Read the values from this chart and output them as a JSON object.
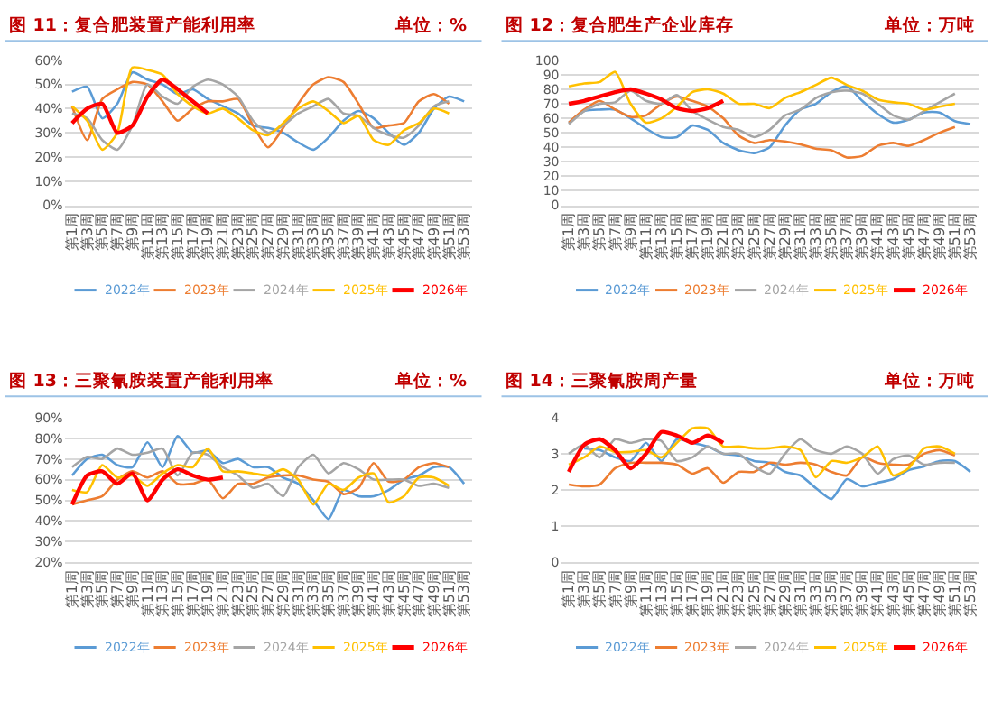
{
  "chart_data": [
    {
      "type": "line",
      "title": "图 11：复合肥装置产能利用率",
      "subtitle": "单位：%",
      "grid": "y",
      "legend": "bottom",
      "categories": [
        "第1周",
        "第3周",
        "第5周",
        "第7周",
        "第9周",
        "第11周",
        "第13周",
        "第15周",
        "第17周",
        "第19周",
        "第21周",
        "第23周",
        "第25周",
        "第27周",
        "第29周",
        "第31周",
        "第33周",
        "第35周",
        "第37周",
        "第39周",
        "第41周",
        "第43周",
        "第45周",
        "第47周",
        "第49周",
        "第51周",
        "第53周"
      ],
      "ylim": [
        0,
        60
      ],
      "yticks": [
        {
          "value": 0,
          "label": "0%"
        },
        {
          "value": 10,
          "label": "10%"
        },
        {
          "value": 20,
          "label": "20%"
        },
        {
          "value": 30,
          "label": "30%"
        },
        {
          "value": 40,
          "label": "40%"
        },
        {
          "value": 50,
          "label": "50%"
        },
        {
          "value": 60,
          "label": "60%"
        }
      ],
      "series": [
        {
          "name": "2022年",
          "color": "#5b9bd5",
          "values": [
            47,
            49,
            36,
            42,
            55,
            52,
            50,
            46,
            48,
            44,
            41,
            38,
            33,
            32,
            30,
            26,
            23,
            28,
            35,
            39,
            36,
            30,
            25,
            30,
            40,
            45,
            43
          ]
        },
        {
          "name": "2023年",
          "color": "#ed7d31",
          "values": [
            41,
            27,
            44,
            48,
            51,
            50,
            43,
            35,
            40,
            43,
            43,
            44,
            33,
            24,
            32,
            42,
            50,
            53,
            51,
            42,
            32,
            33,
            34,
            43,
            46,
            42,
            null
          ]
        },
        {
          "name": "2024年",
          "color": "#a5a5a5",
          "values": [
            38,
            36,
            27,
            23,
            33,
            50,
            45,
            42,
            49,
            52,
            50,
            45,
            35,
            30,
            33,
            38,
            41,
            44,
            38,
            37,
            32,
            29,
            28,
            33,
            41,
            43,
            null
          ]
        },
        {
          "name": "2025年",
          "color": "#ffc000",
          "values": [
            41,
            35,
            23,
            30,
            57,
            56,
            54,
            46,
            41,
            38,
            40,
            36,
            31,
            29,
            34,
            40,
            43,
            39,
            34,
            37,
            27,
            25,
            31,
            34,
            40,
            38,
            null
          ]
        },
        {
          "name": "2026年",
          "color": "#ff0000",
          "values": [
            34,
            40,
            42,
            30,
            33,
            45,
            52,
            48,
            43,
            38,
            null,
            null,
            null,
            null,
            null,
            null,
            null,
            null,
            null,
            null,
            null,
            null,
            null,
            null,
            null,
            null,
            null
          ]
        }
      ]
    },
    {
      "type": "line",
      "title": "图 12：复合肥生产企业库存",
      "subtitle": "单位：万吨",
      "grid": "y",
      "legend": "bottom",
      "categories": [
        "第1周",
        "第3周",
        "第5周",
        "第7周",
        "第9周",
        "第11周",
        "第13周",
        "第15周",
        "第17周",
        "第19周",
        "第21周",
        "第23周",
        "第25周",
        "第27周",
        "第29周",
        "第31周",
        "第33周",
        "第35周",
        "第37周",
        "第39周",
        "第41周",
        "第43周",
        "第45周",
        "第47周",
        "第49周",
        "第51周",
        "第53周"
      ],
      "ylim": [
        0,
        100
      ],
      "yticks": [
        0,
        10,
        20,
        30,
        40,
        50,
        60,
        70,
        80,
        90,
        100
      ],
      "series": [
        {
          "name": "2022年",
          "color": "#5b9bd5",
          "values": [
            57,
            65,
            66,
            66,
            60,
            53,
            47,
            47,
            55,
            52,
            43,
            38,
            36,
            40,
            55,
            66,
            70,
            78,
            82,
            72,
            63,
            57,
            59,
            64,
            64,
            58,
            56
          ]
        },
        {
          "name": "2023年",
          "color": "#ed7d31",
          "values": [
            57,
            66,
            72,
            66,
            61,
            62,
            70,
            75,
            72,
            68,
            60,
            48,
            43,
            45,
            44,
            42,
            39,
            38,
            33,
            34,
            41,
            43,
            41,
            45,
            50,
            54,
            null
          ]
        },
        {
          "name": "2024年",
          "color": "#a5a5a5",
          "values": [
            56,
            65,
            70,
            71,
            79,
            72,
            70,
            76,
            65,
            59,
            54,
            52,
            47,
            52,
            62,
            66,
            74,
            78,
            79,
            77,
            70,
            62,
            59,
            65,
            71,
            77,
            null
          ]
        },
        {
          "name": "2025年",
          "color": "#ffc000",
          "values": [
            82,
            84,
            85,
            92,
            70,
            57,
            60,
            68,
            78,
            80,
            77,
            70,
            70,
            67,
            74,
            78,
            83,
            88,
            83,
            79,
            73,
            71,
            70,
            66,
            68,
            70,
            null
          ]
        },
        {
          "name": "2026年",
          "color": "#ff0000",
          "values": [
            70,
            72,
            75,
            78,
            80,
            77,
            73,
            67,
            65,
            67,
            72,
            null,
            null,
            null,
            null,
            null,
            null,
            null,
            null,
            null,
            null,
            null,
            null,
            null,
            null,
            null,
            null
          ]
        }
      ]
    },
    {
      "type": "line",
      "title": "图 13：三聚氰胺装置产能利用率",
      "subtitle": "单位：%",
      "grid": "y",
      "legend": "bottom",
      "categories": [
        "第1周",
        "第3周",
        "第5周",
        "第7周",
        "第9周",
        "第11周",
        "第13周",
        "第15周",
        "第17周",
        "第19周",
        "第21周",
        "第23周",
        "第25周",
        "第27周",
        "第29周",
        "第31周",
        "第33周",
        "第35周",
        "第37周",
        "第39周",
        "第41周",
        "第43周",
        "第45周",
        "第47周",
        "第49周",
        "第51周",
        "第53周"
      ],
      "ylim": [
        20,
        90
      ],
      "yticks": [
        {
          "value": 20,
          "label": "20%"
        },
        {
          "value": 30,
          "label": "30%"
        },
        {
          "value": 40,
          "label": "40%"
        },
        {
          "value": 50,
          "label": "50%"
        },
        {
          "value": 60,
          "label": "60%"
        },
        {
          "value": 70,
          "label": "70%"
        },
        {
          "value": 80,
          "label": "80%"
        },
        {
          "value": 90,
          "label": "90%"
        }
      ],
      "series": [
        {
          "name": "2022年",
          "color": "#5b9bd5",
          "values": [
            62,
            70,
            72,
            67,
            66,
            78,
            66,
            81,
            73,
            74,
            68,
            70,
            66,
            66,
            61,
            58,
            50,
            41,
            55,
            52,
            52,
            55,
            60,
            62,
            66,
            66,
            58
          ]
        },
        {
          "name": "2023年",
          "color": "#ed7d31",
          "values": [
            48,
            50,
            52,
            60,
            64,
            61,
            64,
            58,
            58,
            60,
            51,
            58,
            58,
            61,
            62,
            62,
            60,
            59,
            53,
            56,
            68,
            59,
            60,
            66,
            68,
            66,
            null
          ]
        },
        {
          "name": "2024年",
          "color": "#a5a5a5",
          "values": [
            66,
            71,
            70,
            75,
            72,
            73,
            75,
            62,
            73,
            72,
            66,
            62,
            56,
            58,
            52,
            66,
            72,
            63,
            68,
            65,
            60,
            60,
            60,
            57,
            58,
            56,
            null
          ]
        },
        {
          "name": "2025年",
          "color": "#ffc000",
          "values": [
            55,
            54,
            67,
            61,
            62,
            57,
            63,
            67,
            66,
            75,
            64,
            64,
            63,
            62,
            65,
            60,
            48,
            58,
            55,
            61,
            63,
            49,
            52,
            61,
            61,
            57,
            null
          ]
        },
        {
          "name": "2026年",
          "color": "#ff0000",
          "values": [
            48,
            62,
            64,
            58,
            63,
            50,
            60,
            65,
            62,
            60,
            61,
            null,
            null,
            null,
            null,
            null,
            null,
            null,
            null,
            null,
            null,
            null,
            null,
            null,
            null,
            null,
            null
          ]
        }
      ]
    },
    {
      "type": "line",
      "title": "图 14：三聚氰胺周产量",
      "subtitle": "单位：万吨",
      "grid": "y",
      "legend": "bottom",
      "categories": [
        "第1周",
        "第3周",
        "第5周",
        "第7周",
        "第9周",
        "第11周",
        "第13周",
        "第15周",
        "第17周",
        "第19周",
        "第21周",
        "第23周",
        "第25周",
        "第27周",
        "第29周",
        "第31周",
        "第33周",
        "第35周",
        "第37周",
        "第39周",
        "第41周",
        "第43周",
        "第45周",
        "第47周",
        "第49周",
        "第51周",
        "第53周"
      ],
      "ylim": [
        0,
        4
      ],
      "yticks": [
        0,
        1,
        2,
        3,
        4
      ],
      "series": [
        {
          "name": "2022年",
          "color": "#5b9bd5",
          "values": [
            null,
            3.15,
            3.1,
            2.9,
            2.8,
            3.3,
            2.8,
            3.4,
            3.3,
            3.2,
            3.0,
            2.95,
            2.8,
            2.75,
            2.5,
            2.4,
            2.05,
            1.75,
            2.3,
            2.1,
            2.2,
            2.3,
            2.55,
            2.65,
            2.8,
            2.8,
            2.5
          ]
        },
        {
          "name": "2023年",
          "color": "#ed7d31",
          "values": [
            2.15,
            2.1,
            2.15,
            2.6,
            2.75,
            2.75,
            2.75,
            2.7,
            2.45,
            2.6,
            2.2,
            2.5,
            2.5,
            2.75,
            2.7,
            2.75,
            2.7,
            2.5,
            2.4,
            2.9,
            2.75,
            2.7,
            2.7,
            3.0,
            3.1,
            2.95,
            null
          ]
        },
        {
          "name": "2024年",
          "color": "#a5a5a5",
          "values": [
            3.0,
            3.25,
            2.9,
            3.4,
            3.3,
            3.4,
            3.35,
            2.8,
            2.9,
            3.2,
            3.0,
            3.0,
            2.65,
            2.45,
            3.0,
            3.4,
            3.1,
            3.0,
            3.2,
            3.0,
            2.45,
            2.85,
            2.95,
            2.7,
            2.75,
            2.75,
            null
          ]
        },
        {
          "name": "2025年",
          "color": "#ffc000",
          "values": [
            2.7,
            2.9,
            3.2,
            3.05,
            3.05,
            3.1,
            2.9,
            3.3,
            3.7,
            3.7,
            3.2,
            3.2,
            3.15,
            3.15,
            3.2,
            3.1,
            2.35,
            2.8,
            2.75,
            2.9,
            3.2,
            2.4,
            2.6,
            3.15,
            3.2,
            3.0,
            null
          ]
        },
        {
          "name": "2026年",
          "color": "#ff0000",
          "values": [
            2.5,
            3.25,
            3.4,
            3.1,
            2.6,
            3.0,
            3.6,
            3.5,
            3.3,
            3.5,
            3.3,
            null,
            null,
            null,
            null,
            null,
            null,
            null,
            null,
            null,
            null,
            null,
            null,
            null,
            null,
            null,
            null
          ]
        }
      ]
    }
  ]
}
